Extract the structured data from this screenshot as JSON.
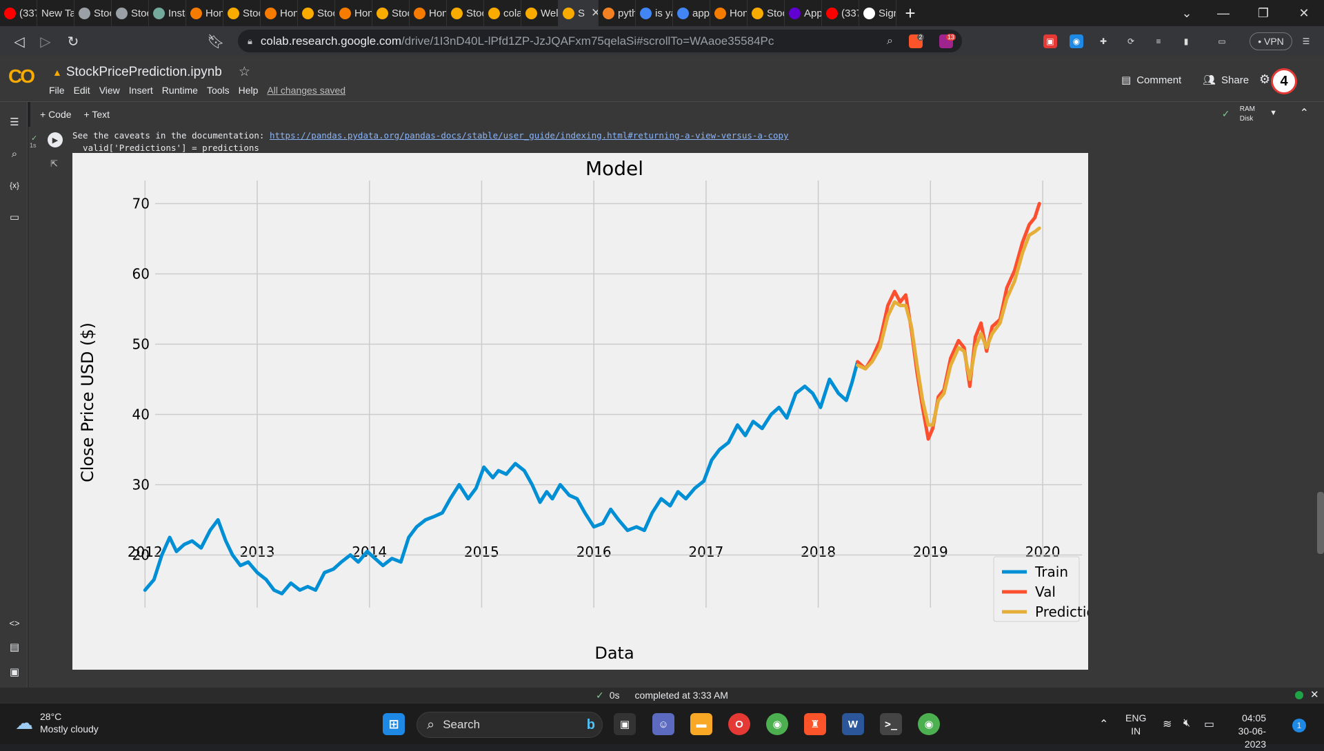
{
  "browser": {
    "tabs": [
      {
        "label": "(337",
        "icon": "youtube-icon",
        "color": "#ff0000"
      },
      {
        "label": "New Tab",
        "icon": "",
        "color": ""
      },
      {
        "label": "Stoc",
        "icon": "globe-icon",
        "color": "#9aa0a6"
      },
      {
        "label": "Stoc",
        "icon": "globe-icon",
        "color": "#9aa0a6"
      },
      {
        "label": "Insta",
        "icon": "chatgpt-icon",
        "color": "#74aa9c"
      },
      {
        "label": "Hon",
        "icon": "arc-icon",
        "color": "#f57c00"
      },
      {
        "label": "Stoc",
        "icon": "book-icon",
        "color": "#f9ab00"
      },
      {
        "label": "Hon",
        "icon": "arc-icon",
        "color": "#f57c00"
      },
      {
        "label": "Stoc",
        "icon": "book-icon",
        "color": "#f9ab00"
      },
      {
        "label": "Hon",
        "icon": "arc-icon",
        "color": "#f57c00"
      },
      {
        "label": "Stoc",
        "icon": "book-icon",
        "color": "#f9ab00"
      },
      {
        "label": "Hon",
        "icon": "arc-icon",
        "color": "#f57c00"
      },
      {
        "label": "Stoc",
        "icon": "book-icon",
        "color": "#f9ab00"
      },
      {
        "label": "cola",
        "icon": "colab-icon",
        "color": "#f9ab00"
      },
      {
        "label": "Wel",
        "icon": "colab-icon",
        "color": "#f9ab00"
      },
      {
        "label": "S",
        "icon": "colab-icon",
        "color": "#f9ab00",
        "active": true
      },
      {
        "label": "pyth",
        "icon": "stackoverflow-icon",
        "color": "#f48024"
      },
      {
        "label": "is ya",
        "icon": "google-icon",
        "color": "#4285f4"
      },
      {
        "label": "app",
        "icon": "google-icon",
        "color": "#4285f4"
      },
      {
        "label": "Hon",
        "icon": "arc-icon",
        "color": "#f57c00"
      },
      {
        "label": "Stoc",
        "icon": "book-icon",
        "color": "#f9ab00"
      },
      {
        "label": "App",
        "icon": "yahoo-icon",
        "color": "#6001d2"
      },
      {
        "label": "(337",
        "icon": "youtube-icon",
        "color": "#ff0000"
      },
      {
        "label": "Sign",
        "icon": "github-icon",
        "color": "#ffffff"
      }
    ],
    "url_host": "colab.research.google.com",
    "url_path": "/drive/1I3nD40L-lPfd1ZP-JzJQAFxm75qelaSi#scrollTo=WAaoe35584Pc",
    "vpn_label": "• VPN",
    "brave_badge": "2",
    "rewards_badge": "13"
  },
  "colab": {
    "logo": "CO",
    "notebook_title": "StockPricePrediction.ipynb",
    "menu": [
      "File",
      "Edit",
      "View",
      "Insert",
      "Runtime",
      "Tools",
      "Help"
    ],
    "saved_status": "All changes saved",
    "comment_label": "Comment",
    "share_label": "Share",
    "notification_count": "4",
    "add_code_label": "+ Code",
    "add_text_label": "+ Text",
    "ram_label": "RAM",
    "disk_label": "Disk",
    "exec_time": "1s",
    "output_line1_prefix": "See the caveats in the documentation: ",
    "output_link": "https://pandas.pydata.org/pandas-docs/stable/user_guide/indexing.html#returning-a-view-versus-a-copy",
    "output_line2": "  valid['Predictions'] = predictions",
    "status_time": "0s",
    "status_text": "completed at 3:33 AM"
  },
  "taskbar": {
    "temperature": "28°C",
    "weather": "Mostly cloudy",
    "search_label": "Search",
    "lang_line1": "ENG",
    "lang_line2": "IN",
    "time": "04:05",
    "date": "30-06-2023",
    "notification_count": "1"
  },
  "chart_data": {
    "type": "line",
    "title": "Model",
    "xlabel": "Data",
    "ylabel": "Close Price USD ($)",
    "xlim": [
      2011.82,
      2020.35
    ],
    "ylim": [
      12.5,
      72.5
    ],
    "xticks": [
      2012,
      2013,
      2014,
      2015,
      2016,
      2017,
      2018,
      2019,
      2020
    ],
    "yticks": [
      20,
      30,
      40,
      50,
      60,
      70
    ],
    "grid": true,
    "legend_position": "bottom-right",
    "series": [
      {
        "name": "Train",
        "color": "#008fd5",
        "x": [
          2012.0,
          2012.08,
          2012.15,
          2012.22,
          2012.28,
          2012.35,
          2012.42,
          2012.5,
          2012.58,
          2012.65,
          2012.72,
          2012.78,
          2012.85,
          2012.92,
          2013.0,
          2013.08,
          2013.15,
          2013.22,
          2013.3,
          2013.38,
          2013.45,
          2013.52,
          2013.6,
          2013.68,
          2013.75,
          2013.83,
          2013.9,
          2013.98,
          2014.05,
          2014.12,
          2014.2,
          2014.28,
          2014.35,
          2014.42,
          2014.5,
          2014.58,
          2014.65,
          2014.72,
          2014.8,
          2014.88,
          2014.95,
          2015.02,
          2015.1,
          2015.15,
          2015.22,
          2015.3,
          2015.38,
          2015.45,
          2015.52,
          2015.58,
          2015.63,
          2015.7,
          2015.78,
          2015.85,
          2015.92,
          2016.0,
          2016.08,
          2016.15,
          2016.22,
          2016.3,
          2016.38,
          2016.45,
          2016.52,
          2016.6,
          2016.68,
          2016.75,
          2016.82,
          2016.9,
          2016.98,
          2017.05,
          2017.12,
          2017.2,
          2017.28,
          2017.35,
          2017.42,
          2017.5,
          2017.58,
          2017.65,
          2017.72,
          2017.8,
          2017.88,
          2017.95,
          2018.02,
          2018.1,
          2018.18,
          2018.25,
          2018.3,
          2018.35
        ],
        "values": [
          15.0,
          16.5,
          20.0,
          22.5,
          20.5,
          21.5,
          22.0,
          21.0,
          23.5,
          25.0,
          22.0,
          20.0,
          18.5,
          19.0,
          17.5,
          16.5,
          15.0,
          14.5,
          16.0,
          15.0,
          15.5,
          15.0,
          17.5,
          18.0,
          19.0,
          20.0,
          19.0,
          20.5,
          19.5,
          18.5,
          19.5,
          19.0,
          22.5,
          24.0,
          25.0,
          25.5,
          26.0,
          28.0,
          30.0,
          28.0,
          29.5,
          32.5,
          31.0,
          32.0,
          31.5,
          33.0,
          32.0,
          30.0,
          27.5,
          29.0,
          28.0,
          30.0,
          28.5,
          28.0,
          26.0,
          24.0,
          24.5,
          26.5,
          25.0,
          23.5,
          24.0,
          23.5,
          26.0,
          28.0,
          27.0,
          29.0,
          28.0,
          29.5,
          30.5,
          33.5,
          35.0,
          36.0,
          38.5,
          37.0,
          39.0,
          38.0,
          40.0,
          41.0,
          39.5,
          43.0,
          44.0,
          43.0,
          41.0,
          45.0,
          43.0,
          42.0,
          44.5,
          47.5
        ]
      },
      {
        "name": "Val",
        "color": "#fc4f30",
        "x": [
          2018.35,
          2018.42,
          2018.48,
          2018.55,
          2018.62,
          2018.68,
          2018.73,
          2018.78,
          2018.83,
          2018.88,
          2018.93,
          2018.98,
          2019.02,
          2019.07,
          2019.12,
          2019.18,
          2019.25,
          2019.3,
          2019.35,
          2019.4,
          2019.45,
          2019.5,
          2019.55,
          2019.62,
          2019.68,
          2019.75,
          2019.82,
          2019.88,
          2019.93,
          2019.97
        ],
        "values": [
          47.5,
          46.5,
          48.0,
          50.5,
          55.5,
          57.5,
          56.0,
          57.0,
          52.0,
          46.0,
          41.0,
          36.5,
          38.0,
          42.5,
          43.5,
          48.0,
          50.5,
          49.5,
          44.0,
          51.0,
          53.0,
          49.0,
          52.5,
          53.5,
          58.0,
          60.5,
          64.5,
          67.0,
          68.0,
          70.0
        ]
      },
      {
        "name": "Predictions",
        "color": "#e5ae38",
        "x": [
          2018.35,
          2018.42,
          2018.48,
          2018.55,
          2018.62,
          2018.68,
          2018.73,
          2018.78,
          2018.83,
          2018.88,
          2018.93,
          2018.98,
          2019.02,
          2019.07,
          2019.12,
          2019.18,
          2019.25,
          2019.3,
          2019.35,
          2019.4,
          2019.45,
          2019.5,
          2019.55,
          2019.62,
          2019.68,
          2019.75,
          2019.82,
          2019.88,
          2019.93,
          2019.97
        ],
        "values": [
          47.0,
          46.5,
          47.5,
          49.5,
          54.0,
          56.0,
          55.5,
          55.5,
          52.5,
          47.0,
          42.0,
          38.5,
          38.5,
          42.0,
          43.0,
          47.0,
          49.5,
          49.0,
          45.0,
          49.5,
          51.5,
          49.5,
          51.5,
          53.0,
          56.5,
          59.0,
          63.0,
          65.5,
          66.0,
          66.5
        ]
      }
    ]
  }
}
